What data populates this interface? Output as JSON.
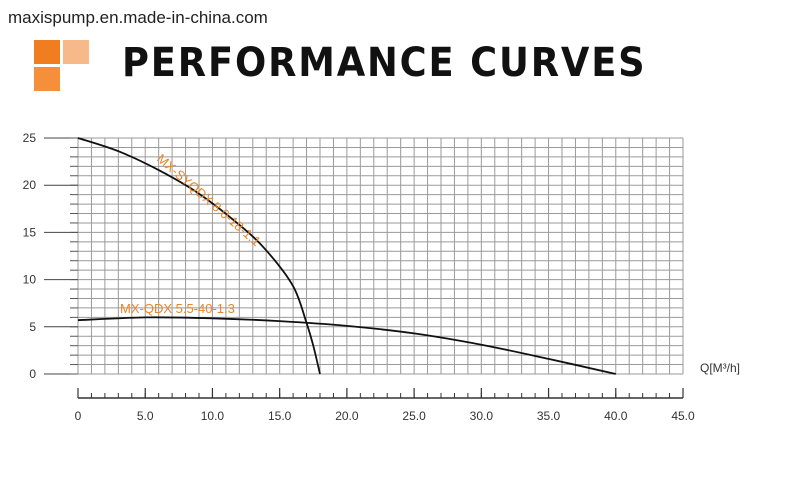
{
  "header": {
    "site": "maxispump.en.made-in-china.com",
    "title": "PERFORMANCE CURVES",
    "logo_colors": [
      "#f07d1f",
      "#f8b98a",
      "#f58f3c"
    ]
  },
  "chart_data": {
    "type": "line",
    "title": "PERFORMANCE CURVES",
    "xlabel": "Q[M³/h]",
    "ylabel": "",
    "xlim": [
      0,
      45
    ],
    "ylim": [
      0,
      25
    ],
    "x_ticks": [
      "0",
      "5.0",
      "10.0",
      "15.0",
      "20.0",
      "25.0",
      "30.0",
      "35.0",
      "40.0",
      "45.0"
    ],
    "y_ticks": [
      "0",
      "5",
      "10",
      "15",
      "20",
      "25"
    ],
    "grid": true,
    "series": [
      {
        "name": "MX-SYQDX 8.0-18-1.1",
        "color": "#111111",
        "label_color": "#e8862a",
        "points": [
          [
            0,
            25
          ],
          [
            3,
            23.6
          ],
          [
            6,
            21.6
          ],
          [
            9,
            19.1
          ],
          [
            12,
            15.8
          ],
          [
            14,
            13.1
          ],
          [
            16,
            9.3
          ],
          [
            17,
            5.4
          ],
          [
            17.5,
            3.0
          ],
          [
            18,
            0
          ]
        ]
      },
      {
        "name": "MX-QDX 5.5-40-1.3",
        "color": "#111111",
        "label_color": "#e8862a",
        "points": [
          [
            0,
            5.7
          ],
          [
            5,
            6.0
          ],
          [
            10,
            5.9
          ],
          [
            15,
            5.6
          ],
          [
            20,
            5.1
          ],
          [
            25,
            4.3
          ],
          [
            30,
            3.1
          ],
          [
            35,
            1.6
          ],
          [
            40,
            0
          ]
        ]
      }
    ]
  }
}
